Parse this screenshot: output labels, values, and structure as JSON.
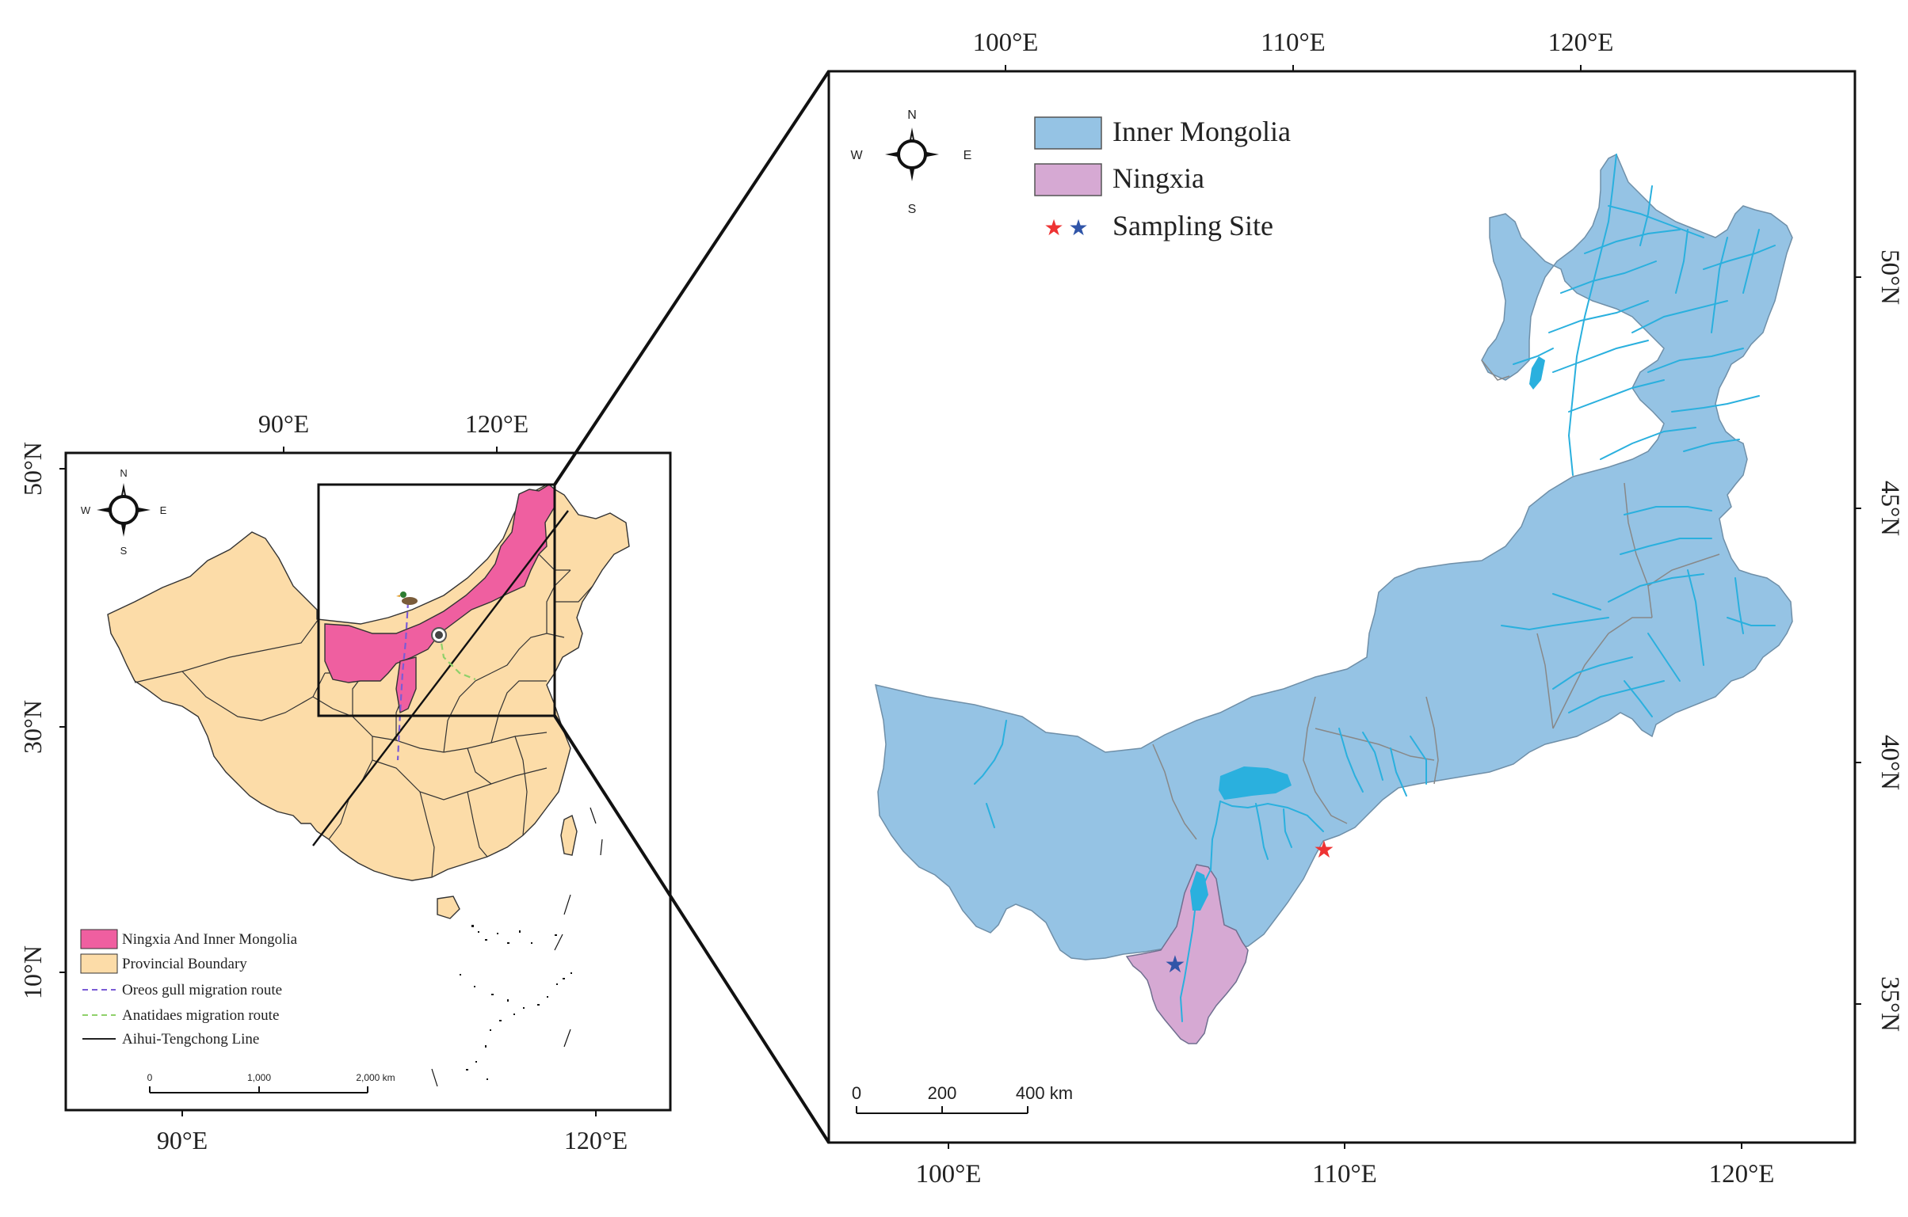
{
  "left_map": {
    "top_axis": [
      "90°E",
      "120°E"
    ],
    "bottom_axis": [
      "90°E",
      "120°E"
    ],
    "left_axis": [
      "50°N",
      "30°N",
      "10°N"
    ],
    "compass": {
      "n": "N",
      "s": "S",
      "e": "E",
      "w": "W"
    },
    "legend": [
      {
        "label": "Ningxia And Inner Mongolia",
        "color": "#ef5fa0",
        "kind": "fill"
      },
      {
        "label": "Provincial Boundary",
        "color": "#fcdca8",
        "kind": "fill"
      },
      {
        "label": "Oreos gull migration route",
        "color": "#7b5cd6",
        "kind": "dash"
      },
      {
        "label": "Anatidaes migration route",
        "color": "#8fd16a",
        "kind": "dash"
      },
      {
        "label": "Aihui-Tengchong Line",
        "color": "#222222",
        "kind": "line"
      }
    ],
    "scale": [
      "0",
      "1,000",
      "2,000 km"
    ]
  },
  "right_map": {
    "top_axis": [
      "100°E",
      "110°E",
      "120°E"
    ],
    "bottom_axis": [
      "100°E",
      "110°E",
      "120°E"
    ],
    "right_axis": [
      "50°N",
      "45°N",
      "40°N",
      "35°N"
    ],
    "compass": {
      "n": "N",
      "s": "S",
      "e": "E",
      "w": "W"
    },
    "legend": [
      {
        "label": "Inner Mongolia",
        "color": "#95c3e4"
      },
      {
        "label": "Ningxia",
        "color": "#d6a9d3"
      },
      {
        "label": "Sampling Site",
        "color": "#ee3333",
        "color2": "#3055a8"
      }
    ],
    "scale": [
      "0",
      "200",
      "400 km"
    ]
  }
}
